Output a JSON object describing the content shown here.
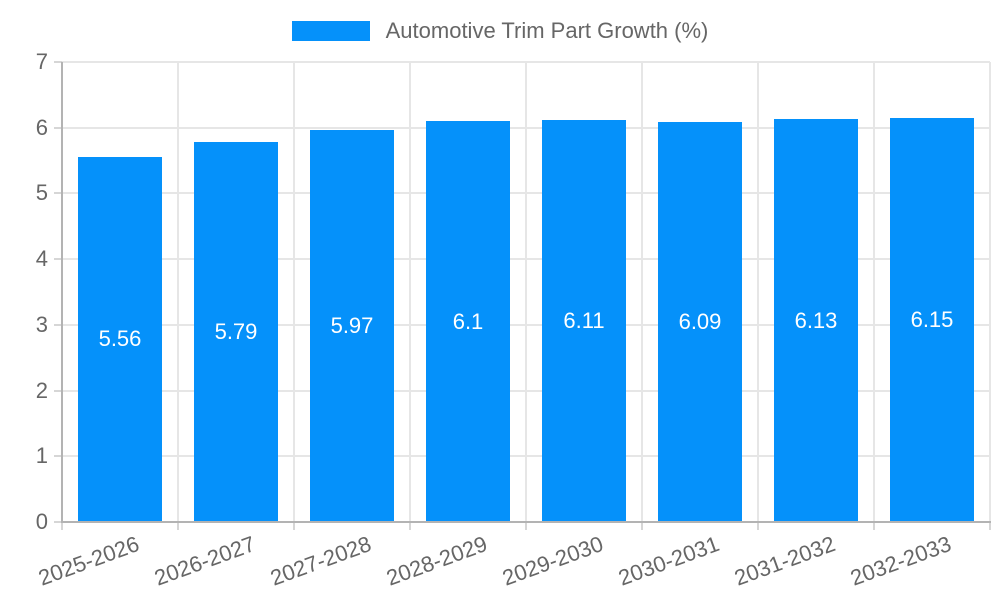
{
  "chart_data": {
    "type": "bar",
    "title": "Automotive Trim Part Growth (%)",
    "categories": [
      "2025-2026",
      "2026-2027",
      "2027-2028",
      "2028-2029",
      "2029-2030",
      "2030-2031",
      "2031-2032",
      "2032-2033"
    ],
    "values": [
      5.56,
      5.79,
      5.97,
      6.1,
      6.11,
      6.09,
      6.13,
      6.15
    ],
    "value_labels": [
      "5.56",
      "5.79",
      "5.97",
      "6.1",
      "6.11",
      "6.09",
      "6.13",
      "6.15"
    ],
    "xlabel": "",
    "ylabel": "",
    "ylim": [
      0,
      7
    ],
    "yticks": [
      0,
      1,
      2,
      3,
      4,
      5,
      6,
      7
    ],
    "grid": true,
    "legend_position": "top",
    "x_label_rotation_deg": -20,
    "colors": {
      "bar": "#0591fa",
      "value_label": "#ffffff",
      "tick_label": "#666666",
      "legend_label": "#666666",
      "gridline": "#e6e6e6",
      "tick_mark": "#d6d6d6",
      "axis_line": "#b3b3b3"
    }
  }
}
